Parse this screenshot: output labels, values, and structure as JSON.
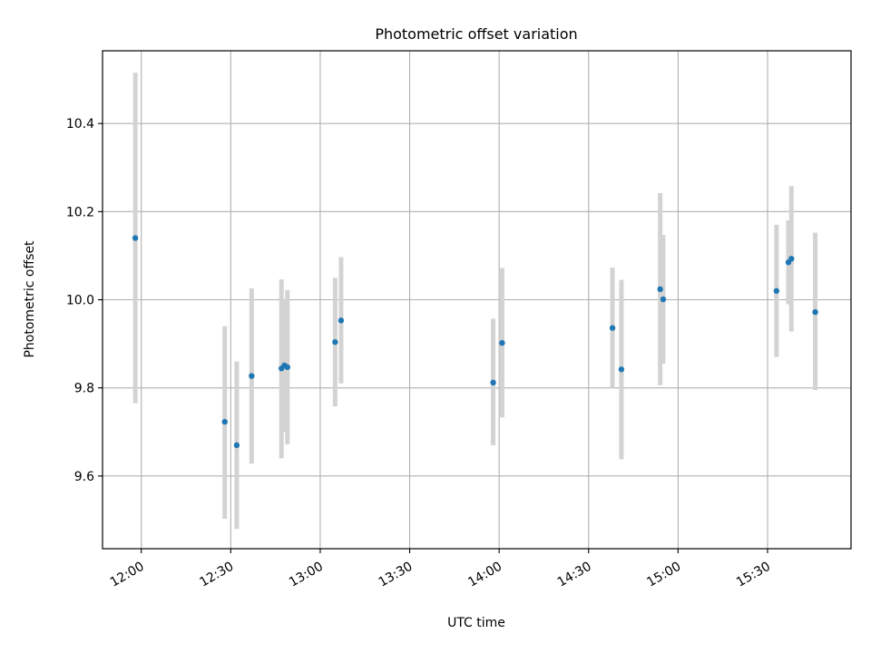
{
  "chart_data": {
    "type": "scatter",
    "title": "Photometric offset variation",
    "xlabel": "UTC time",
    "ylabel": "Photometric offset",
    "xlim": [
      "11:47",
      "15:58"
    ],
    "ylim": [
      9.435,
      10.565
    ],
    "x_ticks": [
      "12:00",
      "12:30",
      "13:00",
      "13:30",
      "14:00",
      "14:30",
      "15:00",
      "15:30"
    ],
    "y_ticks": [
      9.6,
      9.8,
      10.0,
      10.2,
      10.4
    ],
    "y_tick_labels": [
      "9.6",
      "9.8",
      "10.0",
      "10.2",
      "10.4"
    ],
    "grid": true,
    "points": [
      {
        "x": "11:58",
        "y": 10.14,
        "ylow": 9.765,
        "yhigh": 10.515
      },
      {
        "x": "12:28",
        "y": 9.723,
        "ylow": 9.503,
        "yhigh": 9.94
      },
      {
        "x": "12:32",
        "y": 9.67,
        "ylow": 9.48,
        "yhigh": 9.86
      },
      {
        "x": "12:37",
        "y": 9.827,
        "ylow": 9.628,
        "yhigh": 10.026
      },
      {
        "x": "12:47",
        "y": 9.844,
        "ylow": 9.64,
        "yhigh": 10.046
      },
      {
        "x": "12:48",
        "y": 9.851,
        "ylow": 9.7,
        "yhigh": 10.0
      },
      {
        "x": "12:49",
        "y": 9.847,
        "ylow": 9.672,
        "yhigh": 10.022
      },
      {
        "x": "13:05",
        "y": 9.904,
        "ylow": 9.758,
        "yhigh": 10.05
      },
      {
        "x": "13:07",
        "y": 9.953,
        "ylow": 9.81,
        "yhigh": 10.097
      },
      {
        "x": "13:58",
        "y": 9.812,
        "ylow": 9.67,
        "yhigh": 9.957
      },
      {
        "x": "14:01",
        "y": 9.902,
        "ylow": 9.733,
        "yhigh": 10.072
      },
      {
        "x": "14:38",
        "y": 9.936,
        "ylow": 9.8,
        "yhigh": 10.073
      },
      {
        "x": "14:41",
        "y": 9.842,
        "ylow": 9.638,
        "yhigh": 10.045
      },
      {
        "x": "14:54",
        "y": 10.024,
        "ylow": 9.806,
        "yhigh": 10.242
      },
      {
        "x": "14:55",
        "y": 10.001,
        "ylow": 9.855,
        "yhigh": 10.147
      },
      {
        "x": "15:33",
        "y": 10.02,
        "ylow": 9.87,
        "yhigh": 10.17
      },
      {
        "x": "15:37",
        "y": 10.085,
        "ylow": 9.99,
        "yhigh": 10.18
      },
      {
        "x": "15:38",
        "y": 10.093,
        "ylow": 9.928,
        "yhigh": 10.258
      },
      {
        "x": "15:46",
        "y": 9.972,
        "ylow": 9.795,
        "yhigh": 10.152
      }
    ],
    "colors": {
      "marker": "#1f77b4",
      "errorbar": "#d3d3d3",
      "grid": "#b0b0b0"
    }
  }
}
